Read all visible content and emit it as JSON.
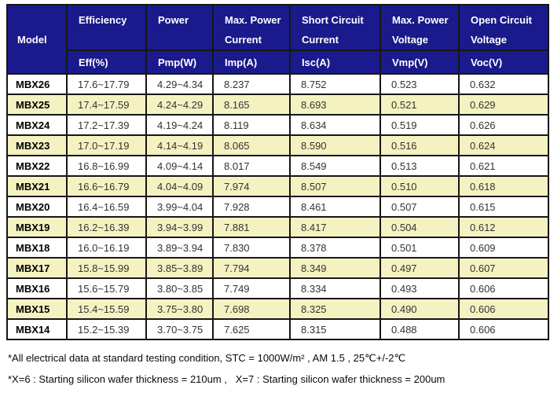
{
  "colors": {
    "header_bg": "#1a1a8c",
    "stripe_bg": "#f5f2c1",
    "grid": "#161616"
  },
  "table": {
    "columns": {
      "model": "Model",
      "groups": [
        {
          "line1": "Efficiency",
          "line2": ""
        },
        {
          "line1": "Power",
          "line2": ""
        },
        {
          "line1": "Max. Power",
          "line2": "Current"
        },
        {
          "line1": "Short Circuit",
          "line2": "Current"
        },
        {
          "line1": "Max. Power",
          "line2": "Voltage"
        },
        {
          "line1": "Open Circuit",
          "line2": "Voltage"
        }
      ],
      "units": [
        "Eff(%)",
        "Pmp(W)",
        "Imp(A)",
        "Isc(A)",
        "Vmp(V)",
        "Voc(V)"
      ]
    },
    "rows": [
      {
        "model": "MBX26",
        "eff": "17.6~17.79",
        "pmp": "4.29~4.34",
        "imp": "8.237",
        "isc": "8.752",
        "vmp": "0.523",
        "voc": "0.632"
      },
      {
        "model": "MBX25",
        "eff": "17.4~17.59",
        "pmp": "4.24~4.29",
        "imp": "8.165",
        "isc": "8.693",
        "vmp": "0.521",
        "voc": "0.629"
      },
      {
        "model": "MBX24",
        "eff": "17.2~17.39",
        "pmp": "4.19~4.24",
        "imp": "8.119",
        "isc": "8.634",
        "vmp": "0.519",
        "voc": "0.626"
      },
      {
        "model": "MBX23",
        "eff": "17.0~17.19",
        "pmp": "4.14~4.19",
        "imp": "8.065",
        "isc": "8.590",
        "vmp": "0.516",
        "voc": "0.624"
      },
      {
        "model": "MBX22",
        "eff": "16.8~16.99",
        "pmp": "4.09~4.14",
        "imp": "8.017",
        "isc": "8.549",
        "vmp": "0.513",
        "voc": "0.621"
      },
      {
        "model": "MBX21",
        "eff": "16.6~16.79",
        "pmp": "4.04~4.09",
        "imp": "7.974",
        "isc": "8.507",
        "vmp": "0.510",
        "voc": "0.618"
      },
      {
        "model": "MBX20",
        "eff": "16.4~16.59",
        "pmp": "3.99~4.04",
        "imp": "7.928",
        "isc": "8.461",
        "vmp": "0.507",
        "voc": "0.615"
      },
      {
        "model": "MBX19",
        "eff": "16.2~16.39",
        "pmp": "3.94~3.99",
        "imp": "7.881",
        "isc": "8.417",
        "vmp": "0.504",
        "voc": "0.612"
      },
      {
        "model": "MBX18",
        "eff": "16.0~16.19",
        "pmp": "3.89~3.94",
        "imp": "7.830",
        "isc": "8.378",
        "vmp": "0.501",
        "voc": "0.609"
      },
      {
        "model": "MBX17",
        "eff": "15.8~15.99",
        "pmp": "3.85~3.89",
        "imp": "7.794",
        "isc": "8.349",
        "vmp": "0.497",
        "voc": "0.607"
      },
      {
        "model": "MBX16",
        "eff": "15.6~15.79",
        "pmp": "3.80~3.85",
        "imp": "7.749",
        "isc": "8.334",
        "vmp": "0.493",
        "voc": "0.606"
      },
      {
        "model": "MBX15",
        "eff": "15.4~15.59",
        "pmp": "3.75~3.80",
        "imp": "7.698",
        "isc": "8.325",
        "vmp": "0.490",
        "voc": "0.606"
      },
      {
        "model": "MBX14",
        "eff": "15.2~15.39",
        "pmp": "3.70~3.75",
        "imp": "7.625",
        "isc": "8.315",
        "vmp": "0.488",
        "voc": "0.606"
      }
    ]
  },
  "footnotes": [
    "*All electrical data at standard testing condition, STC = 1000W/m² , AM 1.5 , 25℃+/-2℃",
    "*X=6 : Starting silicon wafer thickness = 210um ,   X=7 : Starting silicon wafer thickness = 200um"
  ]
}
